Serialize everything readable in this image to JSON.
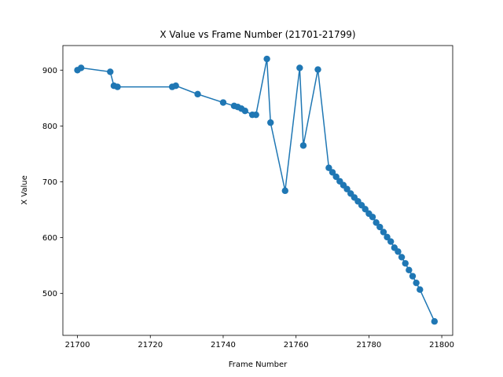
{
  "chart_data": {
    "type": "line",
    "title": "X Value vs Frame Number (21701-21799)",
    "xlabel": "Frame Number",
    "ylabel": "X Value",
    "xlim": [
      21696,
      21803
    ],
    "ylim": [
      425,
      944
    ],
    "xticks": [
      21700,
      21720,
      21740,
      21760,
      21780,
      21800
    ],
    "yticks": [
      500,
      600,
      700,
      800,
      900
    ],
    "grid": false,
    "marker": "circle",
    "colors": {
      "series": "#1f77b4"
    },
    "series": [
      {
        "x": [
          21700,
          21701,
          21709,
          21710,
          21711,
          21726,
          21727,
          21733,
          21740,
          21743,
          21744,
          21745,
          21746,
          21748,
          21749,
          21752,
          21753,
          21757,
          21761,
          21762,
          21766,
          21769,
          21770,
          21771,
          21772,
          21773,
          21774,
          21775,
          21776,
          21777,
          21778,
          21779,
          21780,
          21781,
          21782,
          21783,
          21784,
          21785,
          21786,
          21787,
          21788,
          21789,
          21790,
          21791,
          21792,
          21793,
          21794,
          21798
        ],
        "y": [
          900,
          904,
          897,
          872,
          870,
          870,
          872,
          857,
          842,
          836,
          834,
          831,
          827,
          820,
          820,
          920,
          806,
          684,
          904,
          765,
          901,
          725,
          717,
          709,
          701,
          694,
          687,
          679,
          672,
          665,
          658,
          651,
          643,
          637,
          627,
          619,
          610,
          601,
          593,
          582,
          575,
          565,
          554,
          542,
          531,
          519,
          507,
          450
        ]
      }
    ]
  }
}
